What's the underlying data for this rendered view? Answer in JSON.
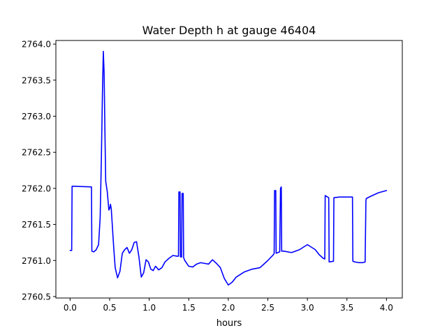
{
  "chart_data": {
    "type": "line",
    "title": "Water Depth h at gauge 46404",
    "xlabel": "hours",
    "ylabel": "",
    "xlim": [
      -0.18,
      4.2
    ],
    "ylim": [
      2760.48,
      2764.05
    ],
    "xticks": [
      0.0,
      0.5,
      1.0,
      1.5,
      2.0,
      2.5,
      3.0,
      3.5,
      4.0
    ],
    "xtick_labels": [
      "0.0",
      "0.5",
      "1.0",
      "1.5",
      "2.0",
      "2.5",
      "3.0",
      "3.5",
      "4.0"
    ],
    "yticks": [
      2760.5,
      2761.0,
      2761.5,
      2762.0,
      2762.5,
      2763.0,
      2763.5,
      2764.0
    ],
    "ytick_labels": [
      "2760.5",
      "2761.0",
      "2761.5",
      "2762.0",
      "2762.5",
      "2763.0",
      "2763.5",
      "2764.0"
    ],
    "grid": false,
    "series": [
      {
        "color": "#0000ff",
        "x": [
          0.0,
          0.02,
          0.025,
          0.27,
          0.275,
          0.3,
          0.33,
          0.36,
          0.38,
          0.395,
          0.41,
          0.42,
          0.43,
          0.44,
          0.45,
          0.47,
          0.49,
          0.5,
          0.51,
          0.52,
          0.53,
          0.55,
          0.57,
          0.6,
          0.63,
          0.66,
          0.69,
          0.72,
          0.75,
          0.78,
          0.81,
          0.84,
          0.87,
          0.9,
          0.93,
          0.96,
          0.99,
          1.02,
          1.05,
          1.08,
          1.12,
          1.16,
          1.2,
          1.25,
          1.3,
          1.35,
          1.37,
          1.375,
          1.39,
          1.395,
          1.41,
          1.415,
          1.43,
          1.435,
          1.45,
          1.5,
          1.55,
          1.6,
          1.65,
          1.7,
          1.75,
          1.8,
          1.85,
          1.9,
          1.95,
          2.0,
          2.05,
          2.1,
          2.2,
          2.3,
          2.4,
          2.5,
          2.57,
          2.58,
          2.585,
          2.6,
          2.605,
          2.65,
          2.66,
          2.67,
          2.675,
          2.7,
          2.8,
          2.9,
          3.0,
          3.1,
          3.15,
          3.2,
          3.22,
          3.225,
          3.27,
          3.275,
          3.33,
          3.335,
          3.4,
          3.57,
          3.575,
          3.6,
          3.65,
          3.7,
          3.73,
          3.74,
          3.745,
          3.8,
          3.9,
          4.0
        ],
        "values": [
          2761.14,
          2761.14,
          2762.03,
          2762.02,
          2761.13,
          2761.12,
          2761.15,
          2761.22,
          2761.6,
          2762.4,
          2763.4,
          2763.9,
          2763.6,
          2762.8,
          2762.1,
          2761.95,
          2761.7,
          2761.72,
          2761.78,
          2761.72,
          2761.55,
          2761.2,
          2760.9,
          2760.76,
          2760.85,
          2761.1,
          2761.15,
          2761.18,
          2761.1,
          2761.15,
          2761.25,
          2761.26,
          2761.05,
          2760.77,
          2760.83,
          2761.01,
          2760.98,
          2760.88,
          2760.86,
          2760.92,
          2760.87,
          2760.9,
          2760.98,
          2761.03,
          2761.07,
          2761.06,
          2761.06,
          2761.95,
          2761.95,
          2761.05,
          2761.05,
          2761.93,
          2761.93,
          2761.04,
          2761.0,
          2760.92,
          2760.91,
          2760.95,
          2760.97,
          2760.96,
          2760.95,
          2761.01,
          2760.96,
          2760.9,
          2760.75,
          2760.66,
          2760.7,
          2760.77,
          2760.84,
          2760.88,
          2760.9,
          2761.0,
          2761.08,
          2761.1,
          2761.97,
          2761.97,
          2761.1,
          2761.12,
          2762.0,
          2762.02,
          2761.13,
          2761.13,
          2761.11,
          2761.15,
          2761.22,
          2761.15,
          2761.08,
          2761.03,
          2761.02,
          2761.9,
          2761.87,
          2760.98,
          2760.99,
          2761.87,
          2761.88,
          2761.88,
          2760.99,
          2760.98,
          2760.97,
          2760.97,
          2760.98,
          2761.83,
          2761.86,
          2761.89,
          2761.94,
          2761.97
        ]
      }
    ]
  }
}
